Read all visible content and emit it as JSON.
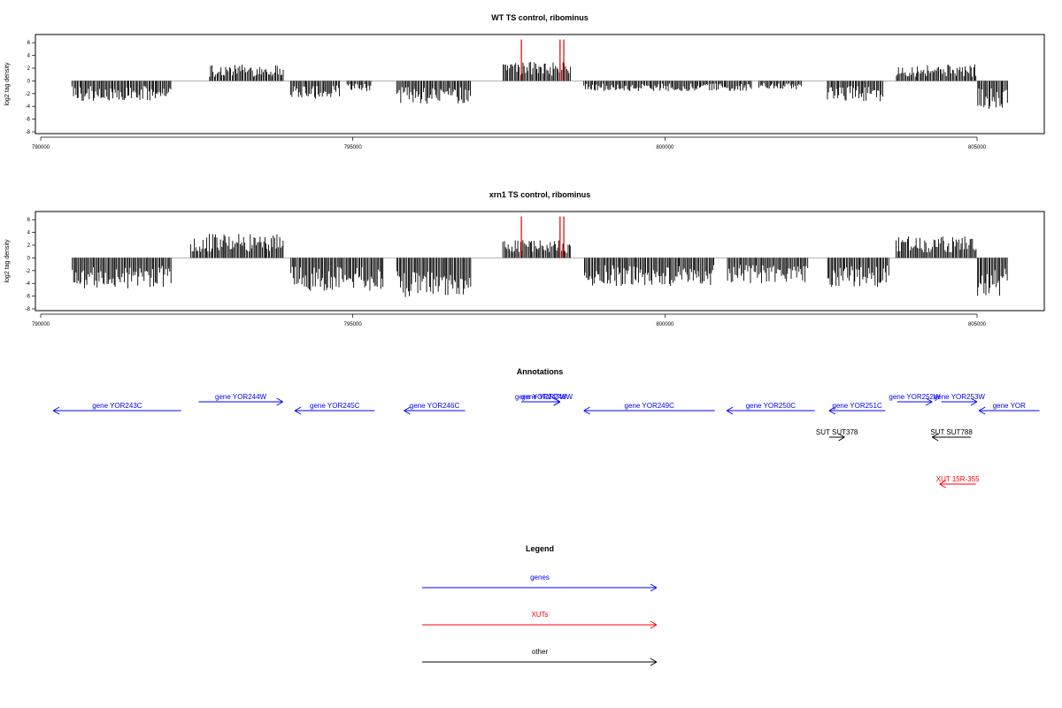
{
  "chart_data": [
    {
      "type": "bar",
      "title": "WT TS control, ribominus",
      "ylabel": "log2 tag density",
      "xlim": [
        790000,
        806000
      ],
      "ylim": [
        -8,
        7
      ],
      "x_ticks": [
        "790000",
        "795000",
        "800000",
        "805000"
      ],
      "y_ticks": [
        "6",
        "4",
        "2",
        "0",
        "-2",
        "-4",
        "-6",
        "-8"
      ],
      "baseline": 0,
      "red_markers": [
        797700,
        798320,
        798380
      ],
      "segments": [
        {
          "from": 790500,
          "to": 792100,
          "strand": "minus",
          "max": 3.2
        },
        {
          "from": 792700,
          "to": 793900,
          "strand": "plus",
          "max": 2.6
        },
        {
          "from": 794000,
          "to": 794800,
          "strand": "minus",
          "max": 2.8
        },
        {
          "from": 794900,
          "to": 795300,
          "strand": "minus",
          "max": 1.8
        },
        {
          "from": 795700,
          "to": 796900,
          "strand": "minus",
          "max": 3.6
        },
        {
          "from": 797400,
          "to": 798500,
          "strand": "plus",
          "max": 3.0
        },
        {
          "from": 798700,
          "to": 801400,
          "strand": "minus",
          "max": 1.6
        },
        {
          "from": 801500,
          "to": 802200,
          "strand": "minus",
          "max": 1.4
        },
        {
          "from": 802600,
          "to": 803500,
          "strand": "minus",
          "max": 3.2
        },
        {
          "from": 803700,
          "to": 805000,
          "strand": "plus",
          "max": 2.6
        },
        {
          "from": 805000,
          "to": 805500,
          "strand": "minus",
          "max": 4.6
        }
      ]
    },
    {
      "type": "bar",
      "title": "xrn1 TS control, ribominus",
      "ylabel": "log2 tag density",
      "xlim": [
        790000,
        806000
      ],
      "ylim": [
        -8,
        7
      ],
      "x_ticks": [
        "790000",
        "795000",
        "800000",
        "805000"
      ],
      "y_ticks": [
        "6",
        "4",
        "2",
        "0",
        "-2",
        "-4",
        "-6",
        "-8"
      ],
      "baseline": 0,
      "red_markers": [
        797700,
        798320,
        798380
      ],
      "segments": [
        {
          "from": 790500,
          "to": 792100,
          "strand": "minus",
          "max": 4.8
        },
        {
          "from": 792400,
          "to": 793900,
          "strand": "plus",
          "max": 3.8
        },
        {
          "from": 794000,
          "to": 795500,
          "strand": "minus",
          "max": 5.2
        },
        {
          "from": 795700,
          "to": 796900,
          "strand": "minus",
          "max": 6.2
        },
        {
          "from": 797400,
          "to": 798500,
          "strand": "plus",
          "max": 2.8
        },
        {
          "from": 798700,
          "to": 800800,
          "strand": "minus",
          "max": 4.4
        },
        {
          "from": 801000,
          "to": 802300,
          "strand": "minus",
          "max": 4.0
        },
        {
          "from": 802600,
          "to": 803600,
          "strand": "minus",
          "max": 4.6
        },
        {
          "from": 803700,
          "to": 805000,
          "strand": "plus",
          "max": 3.4
        },
        {
          "from": 805000,
          "to": 805500,
          "strand": "minus",
          "max": 6.0
        }
      ]
    }
  ],
  "annotations": {
    "title": "Annotations",
    "xlim": [
      790000,
      806000
    ],
    "features": [
      {
        "label": "gene YOR243C",
        "from": 792250,
        "to": 790200,
        "row": "gene-low",
        "color": "#0000ff"
      },
      {
        "label": "gene YOR244W",
        "from": 792530,
        "to": 793880,
        "row": "gene-high",
        "color": "#0000ff"
      },
      {
        "label": "gene YOR245C",
        "from": 795350,
        "to": 794070,
        "row": "gene-low",
        "color": "#0000ff"
      },
      {
        "label": "gene YOR246C",
        "from": 796800,
        "to": 795820,
        "row": "gene-low",
        "color": "#0000ff"
      },
      {
        "label": "gene YOR247W",
        "from": 797700,
        "to": 798320,
        "row": "gene-high",
        "color": "#0000ff"
      },
      {
        "label": "gene YOR248W",
        "from": 797900,
        "to": 798320,
        "row": "gene-high",
        "color": "#0000ff"
      },
      {
        "label": "gene YOR249C",
        "from": 800800,
        "to": 798700,
        "row": "gene-low",
        "color": "#0000ff"
      },
      {
        "label": "gene YOR250C",
        "from": 802400,
        "to": 800990,
        "row": "gene-low",
        "color": "#0000ff"
      },
      {
        "label": "gene YOR251C",
        "from": 803530,
        "to": 802630,
        "row": "gene-low",
        "color": "#0000ff"
      },
      {
        "label": "gene YOR252W",
        "from": 803720,
        "to": 804280,
        "row": "gene-high",
        "color": "#0000ff"
      },
      {
        "label": "gene YOR253W",
        "from": 804430,
        "to": 805000,
        "row": "gene-high",
        "color": "#0000ff"
      },
      {
        "label": "gene YOR",
        "from": 806000,
        "to": 805030,
        "row": "gene-low",
        "color": "#0000ff"
      },
      {
        "label": "SUT SUT378",
        "from": 802630,
        "to": 802880,
        "row": "sut",
        "color": "#000000"
      },
      {
        "label": "SUT SUT788",
        "from": 804900,
        "to": 804280,
        "row": "sut",
        "color": "#000000"
      },
      {
        "label": "XUT 15R-355",
        "from": 804980,
        "to": 804400,
        "row": "xut",
        "color": "#ff0000"
      }
    ]
  },
  "legend": {
    "title": "Legend",
    "items": [
      {
        "label": "genes",
        "color": "#0000ff"
      },
      {
        "label": "XUTs",
        "color": "#ff0000"
      },
      {
        "label": "other",
        "color": "#000000"
      }
    ]
  }
}
